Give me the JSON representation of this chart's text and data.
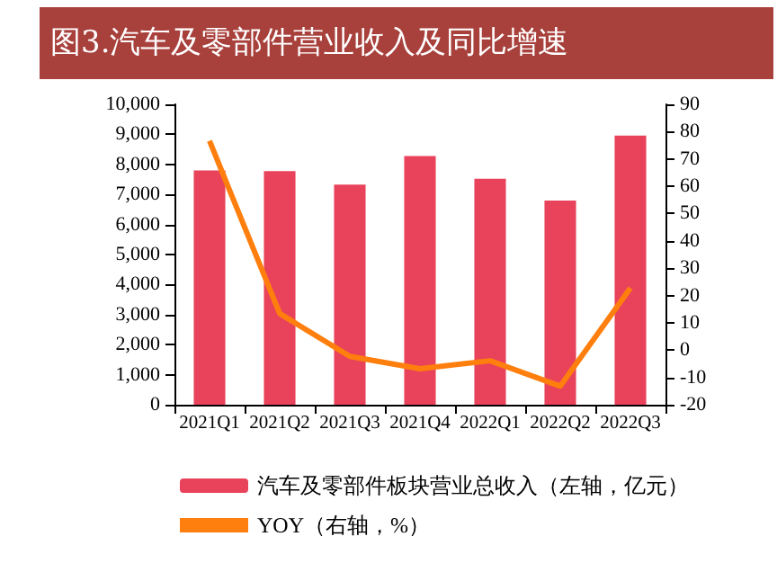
{
  "chart_data": {
    "type": "bar",
    "title": "图3.汽车及零部件营业收入及同比增速",
    "categories": [
      "2021Q1",
      "2021Q2",
      "2021Q3",
      "2021Q4",
      "2022Q1",
      "2022Q2",
      "2022Q3"
    ],
    "series": [
      {
        "name": "汽车及零部件板块营业总收入（左轴，亿元）",
        "color": "#e8435a",
        "values": [
          7800,
          7780,
          7330,
          8280,
          7520,
          6800,
          8960
        ]
      },
      {
        "name": "YOY（右轴，%）",
        "type": "line",
        "axis": "y2",
        "color": "#ff7f0e",
        "values": [
          76.6,
          13.4,
          -2.3,
          -6.8,
          -3.9,
          -13.2,
          22.7
        ]
      }
    ],
    "ylim": [
      0,
      10000
    ],
    "yticks": [
      0,
      {
        "value": 1000,
        "label": "1,000"
      },
      {
        "value": 2000,
        "label": "2,000"
      },
      {
        "value": 3000,
        "label": "3,000"
      },
      {
        "value": 4000,
        "label": "4,000"
      },
      {
        "value": 5000,
        "label": "5,000"
      },
      {
        "value": 6000,
        "label": "6,000"
      },
      {
        "value": 7000,
        "label": "7,000"
      },
      {
        "value": 8000,
        "label": "8,000"
      },
      {
        "value": 9000,
        "label": "9,000"
      },
      {
        "value": 10000,
        "label": "10,000"
      }
    ],
    "y2lim": [
      -20,
      90
    ],
    "y2ticks": [
      -20,
      -10,
      0,
      10,
      20,
      30,
      40,
      50,
      60,
      70,
      80,
      90
    ],
    "grid": false,
    "legend": "bottom",
    "marker": "none"
  }
}
